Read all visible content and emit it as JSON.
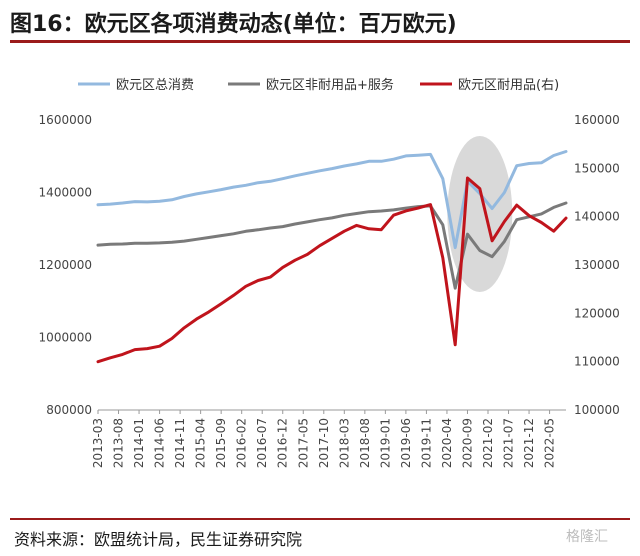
{
  "header": {
    "title": "图16：欧元区各项消费动态(单位：百万欧元)"
  },
  "footer": {
    "source": "资料来源：欧盟统计局，民生证券研究院",
    "watermark": "格隆汇"
  },
  "colors": {
    "total": "#93b9df",
    "nondurable": "#7a7a7a",
    "durable": "#c0141c",
    "highlight": "#d9d9d9"
  },
  "chart_data": {
    "type": "line",
    "title": "图16：欧元区各项消费动态(单位：百万欧元)",
    "x": [
      "2013-03",
      "2013-06",
      "2013-09",
      "2013-12",
      "2014-03",
      "2014-06",
      "2014-09",
      "2014-12",
      "2015-03",
      "2015-06",
      "2015-09",
      "2015-12",
      "2016-03",
      "2016-06",
      "2016-09",
      "2016-12",
      "2017-03",
      "2017-06",
      "2017-09",
      "2017-12",
      "2018-03",
      "2018-06",
      "2018-09",
      "2018-12",
      "2019-03",
      "2019-06",
      "2019-09",
      "2019-12",
      "2020-03",
      "2020-06",
      "2020-09",
      "2020-12",
      "2021-03",
      "2021-06",
      "2021-09",
      "2021-12",
      "2022-03",
      "2022-06",
      "2022-09"
    ],
    "x_tick_labels": [
      "2013-03",
      "2013-08",
      "2014-01",
      "2014-06",
      "2014-11",
      "2015-04",
      "2015-09",
      "2016-02",
      "2016-07",
      "2016-12",
      "2017-05",
      "2017-10",
      "2018-03",
      "2018-08",
      "2019-01",
      "2019-06",
      "2019-11",
      "2020-04",
      "2020-09",
      "2021-02",
      "2021-07",
      "2021-12",
      "2022-05"
    ],
    "y_left": {
      "ylim": [
        800000,
        1600000
      ],
      "ticks": [
        "1600000",
        "1400000",
        "1200000",
        "1000000",
        "800000"
      ]
    },
    "y_right": {
      "ylim": [
        100000,
        160000
      ],
      "ticks": [
        "160000",
        "150000",
        "140000",
        "130000",
        "120000",
        "110000",
        "100000"
      ]
    },
    "legend_position": "top",
    "highlight": {
      "shape": "ellipse",
      "x_center": "2020-12",
      "period": [
        "2020-09",
        "2021-06"
      ]
    },
    "series": [
      {
        "name": "欧元区总消费",
        "axis": "left",
        "values": [
          1366000,
          1368000,
          1371000,
          1375000,
          1374000,
          1376000,
          1380000,
          1389000,
          1396000,
          1402000,
          1408000,
          1415000,
          1420000,
          1427000,
          1431000,
          1438000,
          1446000,
          1453000,
          1460000,
          1466000,
          1473000,
          1479000,
          1486000,
          1486000,
          1492000,
          1501000,
          1503000,
          1505000,
          1438000,
          1248000,
          1431000,
          1397000,
          1356000,
          1400000,
          1474000,
          1480000,
          1482000,
          1502000,
          1513000
        ]
      },
      {
        "name": "欧元区非耐用品+服务",
        "axis": "left",
        "values": [
          1255000,
          1257000,
          1258000,
          1260000,
          1260000,
          1261000,
          1263000,
          1266000,
          1271000,
          1276000,
          1281000,
          1286000,
          1293000,
          1297000,
          1302000,
          1306000,
          1313000,
          1319000,
          1325000,
          1330000,
          1337000,
          1342000,
          1347000,
          1349000,
          1352000,
          1357000,
          1361000,
          1363000,
          1311000,
          1136000,
          1285000,
          1240000,
          1223000,
          1265000,
          1325000,
          1333000,
          1341000,
          1359000,
          1371000
        ]
      },
      {
        "name": "欧元区耐用品(右)",
        "axis": "right",
        "values": [
          110000,
          110800,
          111500,
          112500,
          112700,
          113200,
          114800,
          117000,
          118800,
          120300,
          122000,
          123700,
          125600,
          126800,
          127500,
          129500,
          131000,
          132200,
          134000,
          135500,
          137000,
          138200,
          137500,
          137300,
          140300,
          141200,
          141800,
          142500,
          131500,
          113500,
          148000,
          145800,
          135000,
          139000,
          142400,
          140200,
          138800,
          137000,
          139700
        ]
      }
    ]
  }
}
